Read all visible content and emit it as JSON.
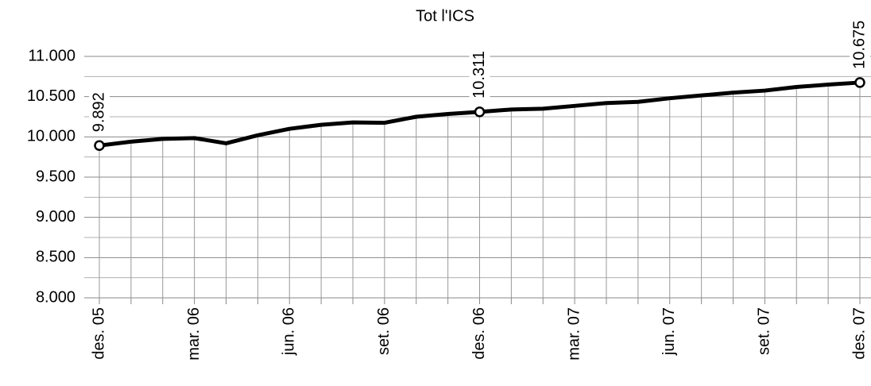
{
  "chart_data": {
    "type": "line",
    "title": "Tot l'ICS",
    "categories": [
      "des. 05",
      null,
      null,
      "mar. 06",
      null,
      null,
      "jun. 06",
      null,
      null,
      "set. 06",
      null,
      null,
      "des. 06",
      null,
      null,
      "mar. 07",
      null,
      null,
      "jun. 07",
      null,
      null,
      "set. 07",
      null,
      null,
      "des. 07"
    ],
    "series": [
      {
        "name": "Tot l'ICS",
        "color": "#000000",
        "values": [
          9892,
          9940,
          9975,
          9985,
          9920,
          10020,
          10100,
          10150,
          10180,
          10175,
          10250,
          10285,
          10311,
          10340,
          10350,
          10385,
          10420,
          10435,
          10480,
          10515,
          10550,
          10575,
          10620,
          10650,
          10675
        ],
        "value_labels": [
          "9.892",
          null,
          null,
          null,
          null,
          null,
          null,
          null,
          null,
          null,
          null,
          null,
          "10.311",
          null,
          null,
          null,
          null,
          null,
          null,
          null,
          null,
          null,
          null,
          null,
          "10.675"
        ]
      }
    ],
    "ylim": [
      8000,
      11000
    ],
    "yticks": [
      {
        "value": 8000,
        "label": "8.000"
      },
      {
        "value": 8500,
        "label": "8.500"
      },
      {
        "value": 9000,
        "label": "9.000"
      },
      {
        "value": 9500,
        "label": "9.500"
      },
      {
        "value": 10000,
        "label": "10.000"
      },
      {
        "value": 10500,
        "label": "10.500"
      },
      {
        "value": 11000,
        "label": "11.000"
      }
    ],
    "minor_yticks": [
      8250,
      8750,
      9250,
      9750,
      10250,
      10750
    ],
    "grid": true,
    "drop_lines": true
  }
}
